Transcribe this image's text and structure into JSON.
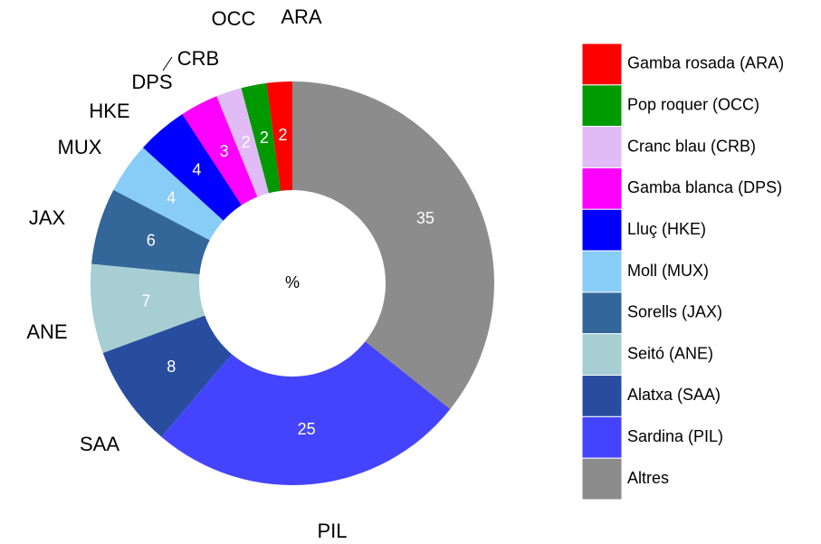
{
  "chart_data": {
    "type": "pie",
    "center_label": "%",
    "categories": [
      "Gamba rosada (ARA)",
      "Pop roquer (OCC)",
      "Cranc blau (CRB)",
      "Gamba blanca (DPS)",
      "Lluç (HKE)",
      "Moll (MUX)",
      "Sorells  (JAX)",
      "Seitó (ANE)",
      "Alatxa (SAA)",
      "Sardina (PIL)",
      "Altres"
    ],
    "codes": [
      "ARA",
      "OCC",
      "CRB",
      "DPS",
      "HKE",
      "MUX",
      "JAX",
      "ANE",
      "SAA",
      "PIL",
      null
    ],
    "values": [
      2,
      2,
      2,
      3,
      4,
      4,
      6,
      7,
      8,
      25,
      35
    ],
    "colors": [
      "#ff0000",
      "#009900",
      "#e0bbf5",
      "#ff00ff",
      "#0000ff",
      "#88ccf8",
      "#336699",
      "#a6ced3",
      "#284d9f",
      "#4444ff",
      "#8c8c8c"
    ]
  }
}
